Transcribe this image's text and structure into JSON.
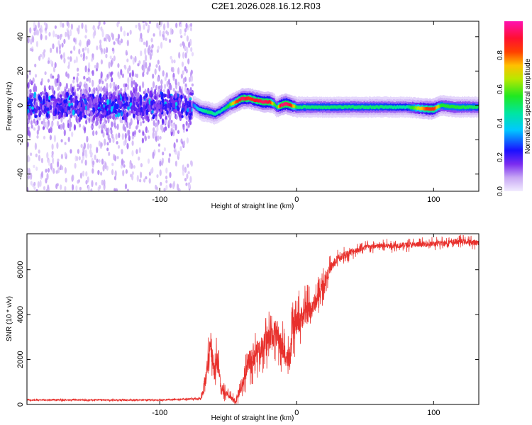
{
  "title": "C2E1.2026.028.16.12.R03",
  "chart_data": [
    {
      "type": "heatmap",
      "title": "C2E1.2026.028.16.12.R03",
      "xlabel": "Height of straight line (km)",
      "ylabel": "Frequency (Hz)",
      "xlim": [
        -197,
        133
      ],
      "ylim": [
        -50,
        49
      ],
      "xticks": [
        -100,
        0,
        100
      ],
      "xtick_labels": [
        "-100",
        "0",
        "100"
      ],
      "yticks": [
        -40,
        -20,
        0,
        20,
        40
      ],
      "ytick_labels": [
        "-40",
        "-20",
        "0",
        "20",
        "40"
      ],
      "colorbar": {
        "label": "Normalized spectral amplitude",
        "range": [
          0,
          1
        ],
        "ticks": [
          0.0,
          0.2,
          0.4,
          0.6,
          0.8
        ],
        "tick_labels": [
          "0.0",
          "0.2",
          "0.4",
          "0.6",
          "0.8"
        ]
      },
      "scatter_region": {
        "x": [
          -197,
          -76
        ],
        "freq_spread": [
          -50,
          49
        ]
      },
      "main_band": {
        "x": [
          -76,
          -70,
          -64,
          -60,
          -55,
          -50,
          -45,
          -40,
          -35,
          -30,
          -25,
          -20,
          -17,
          -15,
          -12,
          -8,
          -5,
          0,
          10,
          30,
          60,
          80,
          95,
          100,
          105,
          115,
          133
        ],
        "freq": [
          0,
          -3,
          -4,
          -5,
          -3,
          0,
          2,
          4,
          4,
          3,
          2,
          2,
          1,
          -1,
          0,
          1,
          0,
          -1,
          -1,
          -1,
          -1,
          -1,
          -2,
          -2,
          0,
          -1,
          -1
        ],
        "peak": [
          0.3,
          0.45,
          0.5,
          0.45,
          0.45,
          0.55,
          0.8,
          0.95,
          0.85,
          0.9,
          0.95,
          0.9,
          0.6,
          0.5,
          0.95,
          0.95,
          0.9,
          0.5,
          0.5,
          0.5,
          0.5,
          0.45,
          0.85,
          0.85,
          0.55,
          0.55,
          0.5
        ]
      }
    },
    {
      "type": "line",
      "xlabel": "Height of straight line (km)",
      "ylabel": "SNR (10 * v/v)",
      "xlim": [
        -197,
        133
      ],
      "ylim": [
        0,
        7600
      ],
      "xticks": [
        -100,
        0,
        100
      ],
      "xtick_labels": [
        "-100",
        "0",
        "100"
      ],
      "yticks": [
        0,
        2000,
        4000,
        6000
      ],
      "ytick_labels": [
        "0",
        "2000",
        "4000",
        "6000"
      ],
      "color": "#e8302c",
      "series": [
        {
          "name": "SNR",
          "x": [
            -197,
            -100,
            -70,
            -67,
            -63,
            -60,
            -58,
            -55,
            -50,
            -45,
            -40,
            -35,
            -30,
            -25,
            -20,
            -15,
            -10,
            -5,
            -3,
            0,
            5,
            10,
            15,
            20,
            25,
            30,
            40,
            50,
            60,
            80,
            100,
            120,
            133
          ],
          "y": [
            200,
            200,
            250,
            900,
            2800,
            1500,
            2100,
            600,
            400,
            100,
            800,
            1900,
            2300,
            2600,
            3000,
            3200,
            2400,
            1900,
            3300,
            3600,
            4000,
            4200,
            4700,
            5400,
            6100,
            6500,
            6800,
            7000,
            7050,
            7100,
            7150,
            7250,
            7200
          ],
          "noise": [
            40,
            40,
            60,
            600,
            900,
            800,
            700,
            300,
            200,
            200,
            400,
            700,
            800,
            800,
            900,
            1000,
            900,
            700,
            900,
            900,
            900,
            800,
            600,
            500,
            400,
            300,
            250,
            200,
            200,
            200,
            200,
            200,
            200
          ]
        }
      ]
    }
  ]
}
